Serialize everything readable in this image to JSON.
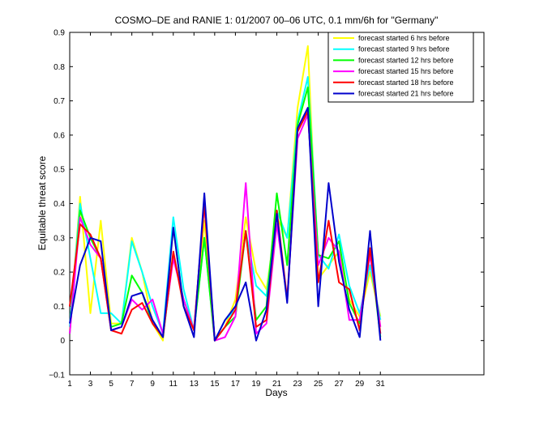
{
  "chart_data": {
    "type": "line",
    "title": "COSMO–DE and RANIE 1: 01/2007 00–06 UTC, 0.1 mm/6h for \"Germany\"",
    "xlabel": "Days",
    "ylabel": "Equitable threat score",
    "xlim": [
      1,
      41
    ],
    "ylim": [
      -0.1,
      0.9
    ],
    "x_ticks": [
      1,
      3,
      5,
      7,
      9,
      11,
      13,
      15,
      17,
      19,
      21,
      23,
      25,
      27,
      29,
      31
    ],
    "y_ticks": [
      -0.1,
      0,
      0.1,
      0.2,
      0.3,
      0.4,
      0.5,
      0.6,
      0.7,
      0.8,
      0.9
    ],
    "y_tick_labels": [
      "−0.1",
      "0",
      "0.1",
      "0.2",
      "0.3",
      "0.4",
      "0.5",
      "0.6",
      "0.7",
      "0.8",
      "0.9"
    ],
    "legend_position": "top-right",
    "grid": false,
    "x": [
      1,
      2,
      3,
      4,
      5,
      6,
      7,
      8,
      9,
      10,
      11,
      12,
      13,
      14,
      15,
      16,
      17,
      18,
      19,
      20,
      21,
      22,
      23,
      24,
      25,
      26,
      27,
      28,
      29,
      30,
      31
    ],
    "series": [
      {
        "name": "forecast started 6 hrs before",
        "color": "#ffff00",
        "values": [
          0.03,
          0.42,
          0.08,
          0.35,
          0.05,
          0.05,
          0.3,
          0.2,
          0.05,
          0.0,
          0.33,
          0.1,
          0.03,
          0.35,
          0.0,
          0.04,
          0.12,
          0.36,
          0.2,
          0.15,
          0.36,
          0.3,
          0.68,
          0.86,
          0.18,
          0.22,
          0.26,
          0.12,
          0.07,
          0.2,
          0.07
        ]
      },
      {
        "name": "forecast started 9 hrs before",
        "color": "#00ffff",
        "values": [
          0.04,
          0.4,
          0.24,
          0.08,
          0.08,
          0.05,
          0.29,
          0.2,
          0.1,
          0.02,
          0.36,
          0.15,
          0.03,
          0.3,
          0.0,
          0.06,
          0.09,
          0.32,
          0.16,
          0.13,
          0.38,
          0.3,
          0.64,
          0.77,
          0.25,
          0.21,
          0.31,
          0.16,
          0.08,
          0.22,
          0.06
        ]
      },
      {
        "name": "forecast started 12 hrs before",
        "color": "#00ff00",
        "values": [
          0.02,
          0.38,
          0.3,
          0.24,
          0.04,
          0.05,
          0.19,
          0.14,
          0.05,
          0.01,
          0.25,
          0.12,
          0.03,
          0.3,
          0.0,
          0.04,
          0.07,
          0.32,
          0.06,
          0.1,
          0.43,
          0.22,
          0.63,
          0.74,
          0.25,
          0.24,
          0.29,
          0.11,
          0.05,
          0.27,
          0.01
        ]
      },
      {
        "name": "forecast started 15 hrs before",
        "color": "#ff00ff",
        "values": [
          0.02,
          0.36,
          0.28,
          0.24,
          0.03,
          0.04,
          0.12,
          0.09,
          0.12,
          0.02,
          0.24,
          0.12,
          0.03,
          0.4,
          0.0,
          0.01,
          0.07,
          0.46,
          0.02,
          0.05,
          0.34,
          0.12,
          0.59,
          0.66,
          0.22,
          0.3,
          0.26,
          0.06,
          0.06,
          0.25,
          0.04
        ]
      },
      {
        "name": "forecast started 18 hrs before",
        "color": "#ff0000",
        "values": [
          0.1,
          0.34,
          0.31,
          0.24,
          0.03,
          0.02,
          0.09,
          0.11,
          0.05,
          0.01,
          0.26,
          0.1,
          0.03,
          0.4,
          0.0,
          0.04,
          0.09,
          0.32,
          0.04,
          0.06,
          0.38,
          0.12,
          0.61,
          0.67,
          0.17,
          0.35,
          0.17,
          0.15,
          0.03,
          0.27,
          0.02
        ]
      },
      {
        "name": "forecast started 21 hrs before",
        "color": "#0000cc",
        "values": [
          0.05,
          0.22,
          0.3,
          0.29,
          0.03,
          0.04,
          0.13,
          0.14,
          0.06,
          0.01,
          0.33,
          0.1,
          0.01,
          0.43,
          0.0,
          0.06,
          0.1,
          0.17,
          0.0,
          0.09,
          0.37,
          0.11,
          0.62,
          0.68,
          0.1,
          0.46,
          0.23,
          0.09,
          0.01,
          0.32,
          0.0
        ]
      }
    ]
  }
}
